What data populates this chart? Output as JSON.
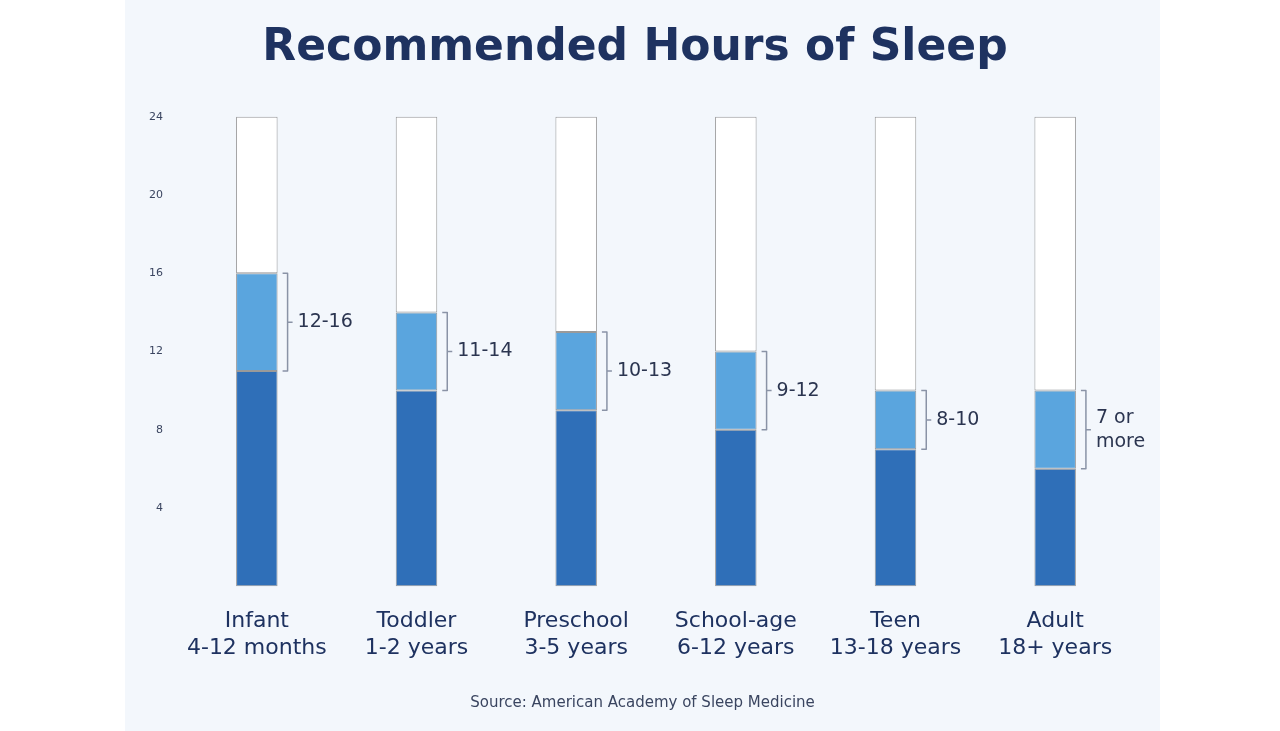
{
  "chart_data": {
    "type": "bar",
    "title": "Recommended Hours of Sleep",
    "categories": [
      "Infant\n4-12 months",
      "Toddler\n1-2 years",
      "Preschool\n3-5 years",
      "School-age\n6-12 years",
      "Teen\n13-18 years",
      "Adult\n18+ years"
    ],
    "stacked": true,
    "series": [
      {
        "color": "#2f6fb8",
        "values": [
          11,
          10,
          9,
          8,
          7,
          6
        ]
      },
      {
        "color": "#5aa5de",
        "values": [
          5,
          4,
          4,
          4,
          3,
          4
        ]
      },
      {
        "color": "#ffffff",
        "values": [
          8,
          10,
          11,
          12,
          14,
          14
        ]
      }
    ],
    "ylim": [
      0,
      24
    ],
    "yticks": [
      4,
      8,
      12,
      16,
      20,
      24
    ],
    "grid": false,
    "legend": false,
    "annotations": [
      "12-16",
      "11-14",
      "10-13",
      "9-12",
      "8-10",
      "7 or\nmore",
      "Source: American Academy of Sleep Medicine"
    ]
  }
}
